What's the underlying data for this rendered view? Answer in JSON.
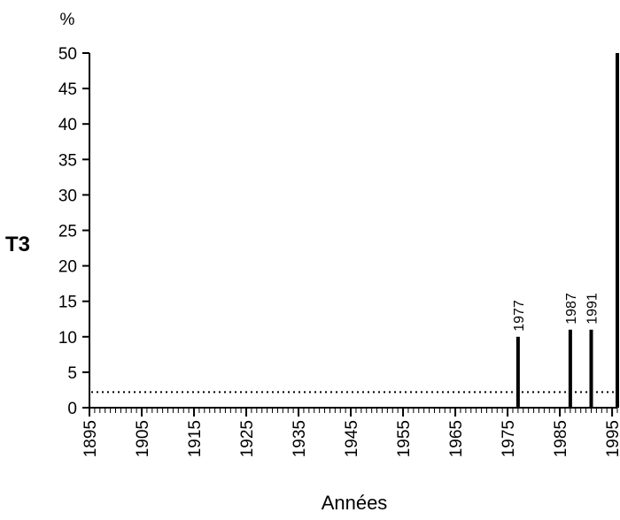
{
  "chart_data": {
    "type": "bar",
    "series_label": "T3",
    "y_unit": "%",
    "xlabel": "Années",
    "ylabel": "%",
    "xlim": [
      1895,
      1996
    ],
    "ylim": [
      0,
      50
    ],
    "x_ticks": [
      1895,
      1905,
      1915,
      1925,
      1935,
      1945,
      1955,
      1965,
      1975,
      1985,
      1995
    ],
    "x_minor_step": 1,
    "y_ticks": [
      0,
      5,
      10,
      15,
      20,
      25,
      30,
      35,
      40,
      45,
      50
    ],
    "reference_line": {
      "value": 2.2,
      "style": "dotted"
    },
    "bars": [
      {
        "x": 1977,
        "value": 10,
        "label": "1977"
      },
      {
        "x": 1987,
        "value": 11,
        "label": "1987"
      },
      {
        "x": 1991,
        "value": 11,
        "label": "1991"
      },
      {
        "x": 1996,
        "value": 50,
        "label": ""
      }
    ],
    "grid": false,
    "colors": {
      "bars": "#000000",
      "axes": "#000000"
    }
  }
}
